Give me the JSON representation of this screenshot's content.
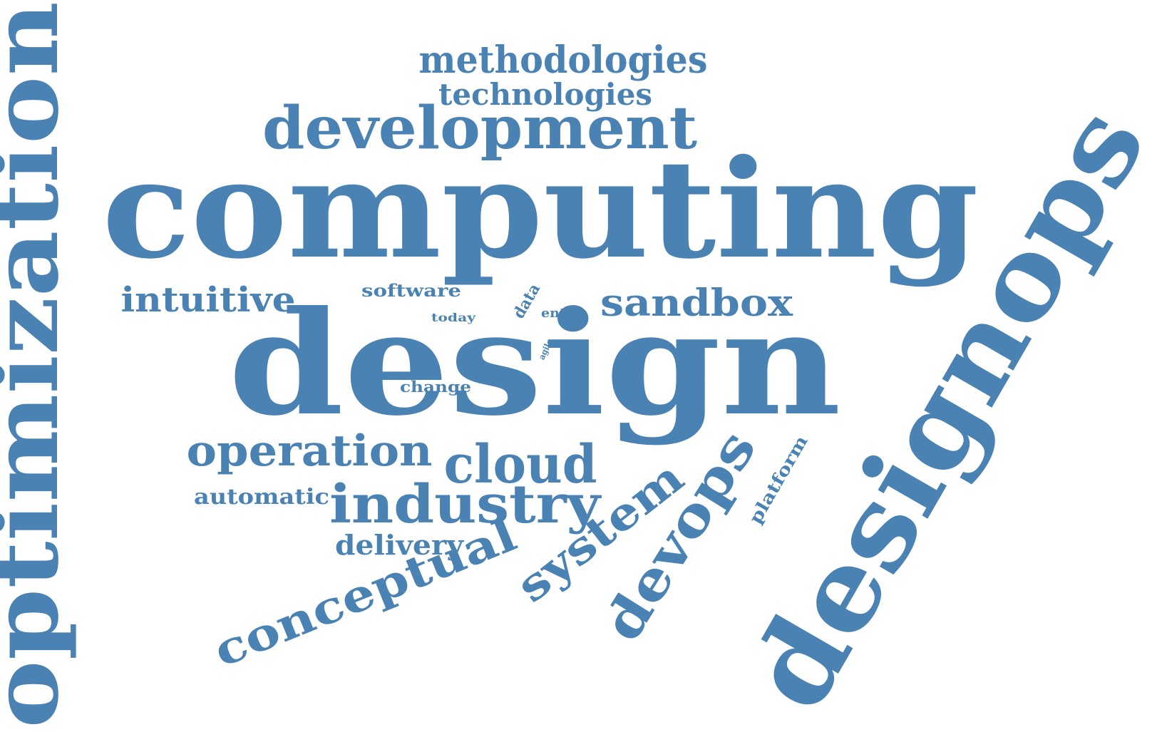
{
  "cloud": {
    "color": "#4a82b4",
    "words": [
      {
        "text": "optimization",
        "weight": 130
      },
      {
        "text": "computing",
        "weight": 190
      },
      {
        "text": "design",
        "weight": 210
      },
      {
        "text": "designops",
        "weight": 170
      },
      {
        "text": "methodologies",
        "weight": 52
      },
      {
        "text": "technologies",
        "weight": 42
      },
      {
        "text": "development",
        "weight": 82
      },
      {
        "text": "intuitive",
        "weight": 48
      },
      {
        "text": "sandbox",
        "weight": 52
      },
      {
        "text": "software",
        "weight": 24
      },
      {
        "text": "today",
        "weight": 16
      },
      {
        "text": "data",
        "weight": 22
      },
      {
        "text": "entire",
        "weight": 18
      },
      {
        "text": "agile",
        "weight": 12
      },
      {
        "text": "change",
        "weight": 21
      },
      {
        "text": "operation",
        "weight": 60
      },
      {
        "text": "cloud",
        "weight": 74
      },
      {
        "text": "automatic",
        "weight": 30
      },
      {
        "text": "industry",
        "weight": 74
      },
      {
        "text": "delivery",
        "weight": 38
      },
      {
        "text": "conceptual",
        "weight": 62
      },
      {
        "text": "system",
        "weight": 62
      },
      {
        "text": "devops",
        "weight": 74
      },
      {
        "text": "platform",
        "weight": 24
      }
    ]
  }
}
